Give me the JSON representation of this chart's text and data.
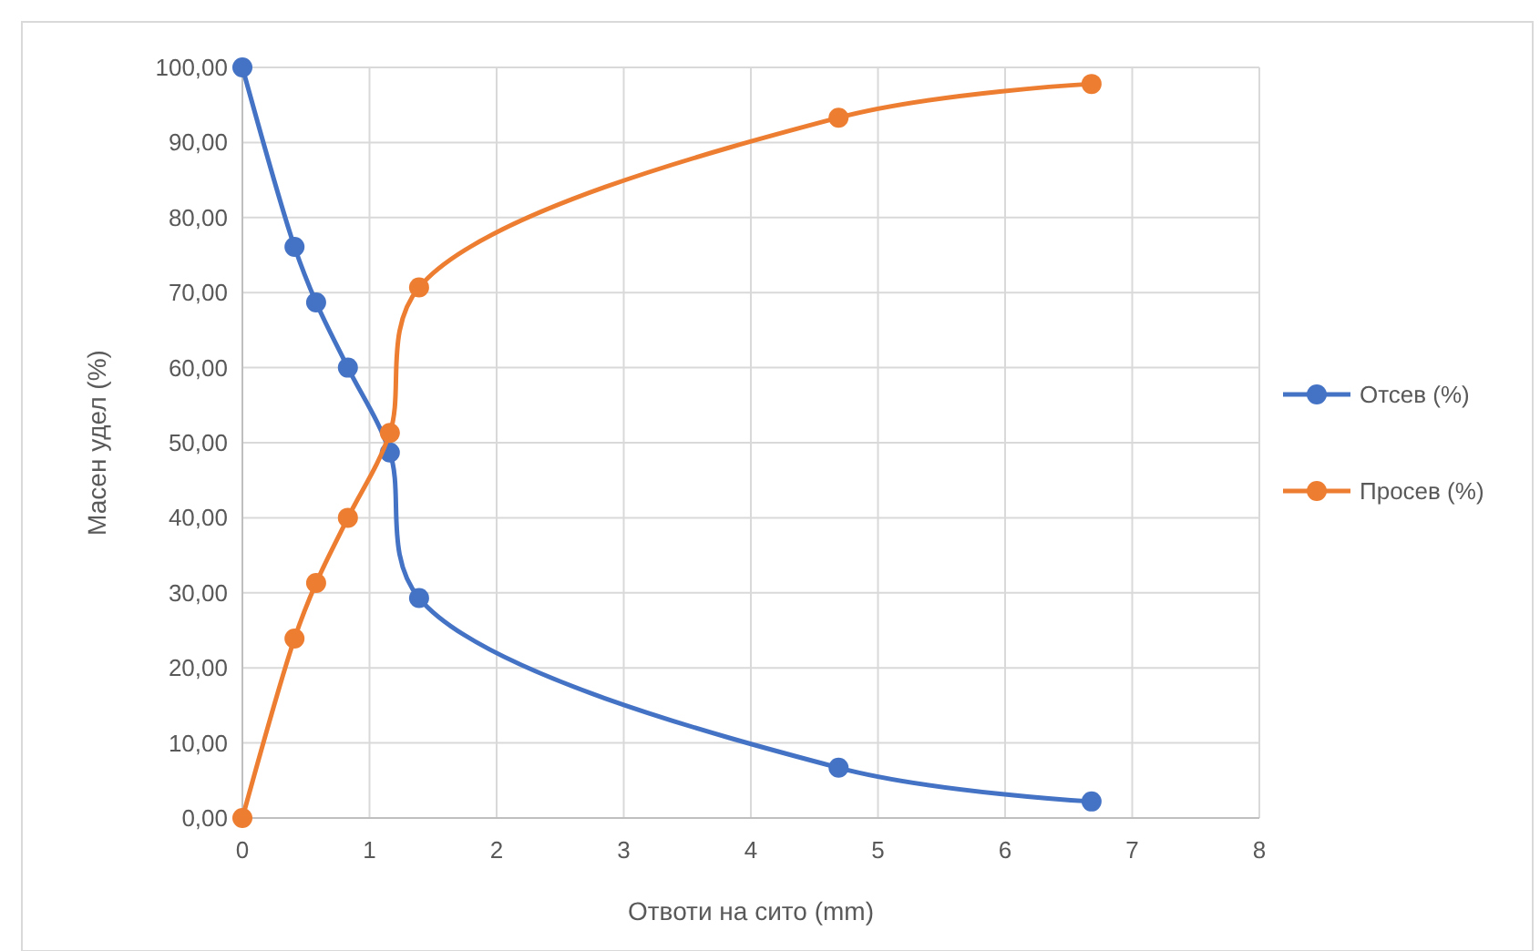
{
  "chart_data": {
    "type": "line",
    "xlabel": "Отвоти на сито (mm)",
    "ylabel": "Масен удел (%)",
    "x": [
      0,
      0.41,
      0.58,
      0.83,
      1.16,
      1.39,
      4.69,
      6.68
    ],
    "series": [
      {
        "name": "Отсев (%)",
        "color": "#4472c4",
        "values": [
          100,
          76.1,
          68.7,
          60.0,
          48.7,
          29.3,
          6.7,
          2.2
        ]
      },
      {
        "name": "Просев (%)",
        "color": "#ed7d31",
        "values": [
          0,
          23.9,
          31.3,
          40.0,
          51.3,
          70.7,
          93.3,
          97.8
        ]
      }
    ],
    "xlim": [
      0,
      8
    ],
    "xticks": [
      0,
      1,
      2,
      3,
      4,
      5,
      6,
      7,
      8
    ],
    "ylim": [
      0,
      100
    ],
    "yticks": [
      {
        "value": 0,
        "label": "0,00"
      },
      {
        "value": 10,
        "label": "10,00"
      },
      {
        "value": 20,
        "label": "20,00"
      },
      {
        "value": 30,
        "label": "30,00"
      },
      {
        "value": 40,
        "label": "40,00"
      },
      {
        "value": 50,
        "label": "50,00"
      },
      {
        "value": 60,
        "label": "60,00"
      },
      {
        "value": 70,
        "label": "70,00"
      },
      {
        "value": 80,
        "label": "80,00"
      },
      {
        "value": 90,
        "label": "90,00"
      },
      {
        "value": 100,
        "label": "100,00"
      }
    ],
    "grid": true,
    "legend": "right",
    "marker": "circle",
    "line_style": "solid"
  }
}
